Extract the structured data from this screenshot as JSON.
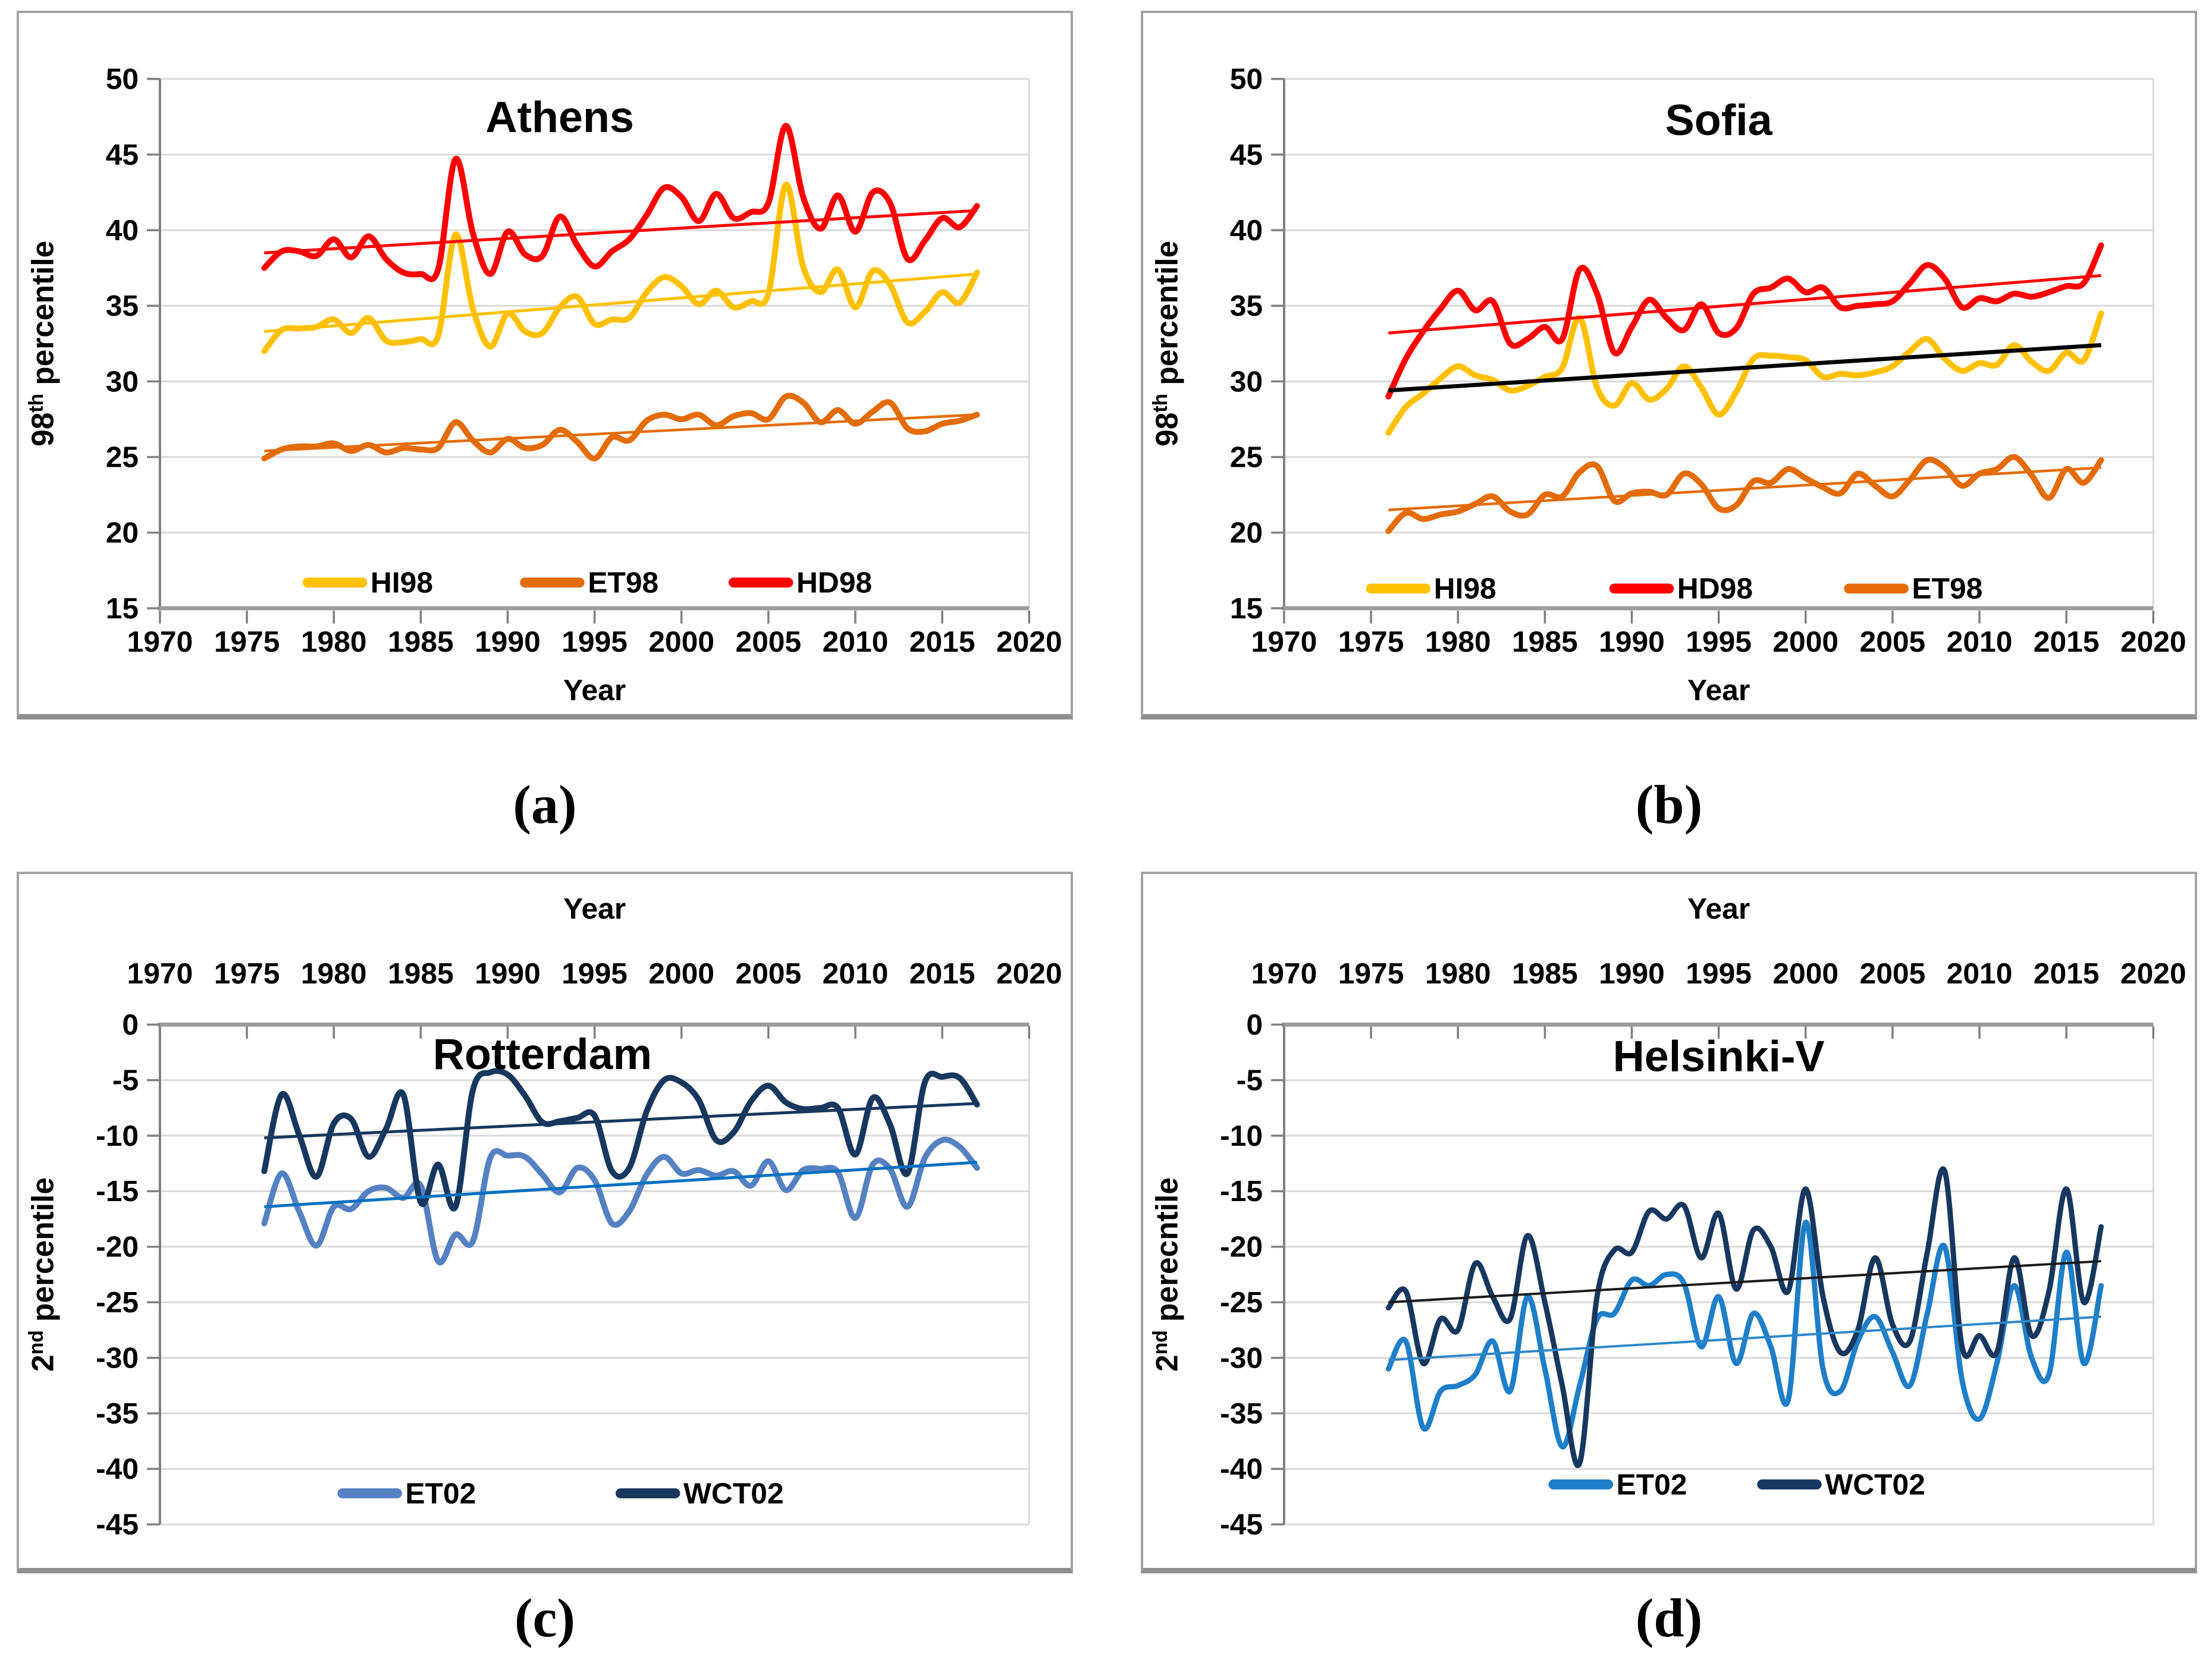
{
  "page": {
    "background": "#FFFFFF",
    "captions": [
      "(a)",
      "(b)",
      "(c)",
      "(d)"
    ]
  },
  "styles": {
    "grid_color": "#D9D9D9",
    "axis_color": "#9B9B9B",
    "y_axis_color": "#808080",
    "tick_color": "#7F7F7F",
    "label_color": "#000000"
  },
  "chart_data": [
    {
      "id": "athens",
      "type": "line",
      "title": "Athens",
      "title_color": "#C00000",
      "title_frac": 0.46,
      "title_value": 46.5,
      "x_axis_side": "bottom",
      "xlabel": "Year",
      "ylabel": {
        "base": "98",
        "sup": "th",
        "rest": " percentile"
      },
      "xlim": [
        1970,
        2020
      ],
      "xstep": 5,
      "ylim": [
        15,
        50
      ],
      "ystep": 5,
      "x_ticks": [
        1970,
        1975,
        1980,
        1985,
        1990,
        1995,
        2000,
        2005,
        2010,
        2015,
        2020
      ],
      "y_ticks": [
        15,
        20,
        25,
        30,
        35,
        40,
        45,
        50
      ],
      "x_start": 1976,
      "series": [
        {
          "name": "ET98",
          "color": "#E36C09",
          "width": 10,
          "values": [
            24.9,
            25.5,
            25.7,
            25.7,
            25.9,
            25.4,
            25.8,
            25.3,
            25.6,
            25.5,
            25.6,
            27.3,
            26.1,
            25.3,
            26.2,
            25.6,
            25.8,
            26.8,
            26.0,
            24.9,
            26.3,
            26.1,
            27.4,
            27.8,
            27.5,
            27.8,
            27.1,
            27.7,
            27.9,
            27.5,
            29.0,
            28.6,
            27.3,
            28.1,
            27.2,
            28.0,
            28.6,
            26.9,
            26.7,
            27.2,
            27.4,
            27.8
          ],
          "trend": {
            "start": 25.4,
            "end": 27.8,
            "color": "#E36C09",
            "width": 4.5
          }
        },
        {
          "name": "HI98",
          "color": "#FFC000",
          "width": 10,
          "values": [
            32.0,
            33.4,
            33.5,
            33.6,
            34.1,
            33.2,
            34.2,
            32.7,
            32.6,
            32.8,
            33.0,
            39.7,
            34.8,
            32.3,
            34.5,
            33.3,
            33.2,
            34.9,
            35.6,
            33.8,
            34.1,
            34.2,
            35.9,
            36.9,
            36.3,
            35.1,
            36.0,
            34.9,
            35.3,
            35.8,
            43.0,
            37.6,
            35.9,
            37.4,
            34.9,
            37.3,
            36.4,
            33.9,
            34.6,
            35.9,
            35.2,
            37.2
          ],
          "trend": {
            "start": 33.3,
            "end": 37.1,
            "color": "#FFC000",
            "width": 5
          }
        },
        {
          "name": "HD98",
          "color": "#FF0000",
          "width": 10,
          "values": [
            37.5,
            38.6,
            38.6,
            38.3,
            39.4,
            38.2,
            39.6,
            38.1,
            37.2,
            37.1,
            37.4,
            44.7,
            39.8,
            37.1,
            39.9,
            38.4,
            38.3,
            40.9,
            39.0,
            37.6,
            38.6,
            39.4,
            41.0,
            42.8,
            42.2,
            40.6,
            42.4,
            40.8,
            41.2,
            41.8,
            46.9,
            42.2,
            40.1,
            42.3,
            39.9,
            42.5,
            41.8,
            38.1,
            39.3,
            40.8,
            40.2,
            41.6
          ],
          "trend": {
            "start": 38.5,
            "end": 41.3,
            "color": "#FF0000",
            "width": 5
          }
        }
      ],
      "legend": {
        "items": [
          {
            "label": "HI98",
            "color": "#FFC000"
          },
          {
            "label": "ET98",
            "color": "#E36C09"
          },
          {
            "label": "HD98",
            "color": "#FF0000"
          }
        ],
        "fracs": [
          0.17,
          0.42,
          0.66
        ],
        "y_value": 16.7
      }
    },
    {
      "id": "sofia",
      "type": "line",
      "title": "Sofia",
      "title_color": "#C00000",
      "title_frac": 0.5,
      "title_value": 46.3,
      "x_axis_side": "bottom",
      "xlabel": "Year",
      "ylabel": {
        "base": "98",
        "sup": "th",
        "rest": " percentile"
      },
      "xlim": [
        1970,
        2020
      ],
      "xstep": 5,
      "ylim": [
        15,
        50
      ],
      "ystep": 5,
      "x_ticks": [
        1970,
        1975,
        1980,
        1985,
        1990,
        1995,
        2000,
        2005,
        2010,
        2015,
        2020
      ],
      "y_ticks": [
        15,
        20,
        25,
        30,
        35,
        40,
        45,
        50
      ],
      "x_start": 1976,
      "series": [
        {
          "name": "ET98",
          "color": "#E36C09",
          "width": 10,
          "values": [
            20.1,
            21.3,
            20.9,
            21.2,
            21.4,
            21.9,
            22.4,
            21.4,
            21.2,
            22.5,
            22.4,
            24.0,
            24.4,
            22.1,
            22.6,
            22.7,
            22.5,
            23.9,
            23.2,
            21.6,
            21.8,
            23.4,
            23.3,
            24.2,
            23.6,
            23.0,
            22.6,
            23.9,
            23.1,
            22.4,
            23.5,
            24.8,
            24.3,
            23.1,
            23.9,
            24.2,
            25.0,
            23.8,
            22.3,
            24.2,
            23.3,
            24.8
          ],
          "trend": {
            "start": 21.5,
            "end": 24.3,
            "color": "#E36C09",
            "width": 4.5
          }
        },
        {
          "name": "HI98",
          "color": "#FFC000",
          "width": 10,
          "values": [
            26.6,
            28.3,
            29.2,
            30.2,
            31.0,
            30.4,
            30.1,
            29.4,
            29.7,
            30.3,
            30.9,
            34.2,
            29.6,
            28.4,
            29.9,
            28.8,
            29.5,
            31.0,
            29.6,
            27.8,
            29.3,
            31.5,
            31.7,
            31.6,
            31.4,
            30.3,
            30.5,
            30.4,
            30.6,
            31.0,
            32.0,
            32.8,
            31.5,
            30.7,
            31.2,
            31.1,
            32.4,
            31.3,
            30.7,
            31.9,
            31.4,
            34.5
          ],
          "trend": {
            "start": 29.4,
            "end": 32.4,
            "color": "#000000",
            "width": 7
          }
        },
        {
          "name": "HD98",
          "color": "#FF0000",
          "width": 10,
          "values": [
            29.0,
            31.5,
            33.3,
            34.8,
            36.0,
            34.7,
            35.3,
            32.5,
            32.8,
            33.6,
            32.8,
            37.4,
            35.8,
            31.9,
            33.6,
            35.4,
            34.2,
            33.4,
            35.1,
            33.2,
            33.5,
            35.8,
            36.2,
            36.8,
            35.9,
            36.2,
            34.9,
            35.0,
            35.1,
            35.3,
            36.5,
            37.7,
            36.8,
            34.9,
            35.5,
            35.3,
            35.8,
            35.6,
            35.9,
            36.3,
            36.5,
            39.0
          ],
          "trend": {
            "start": 33.2,
            "end": 37.0,
            "color": "#FF0000",
            "width": 5
          }
        }
      ],
      "legend": {
        "items": [
          {
            "label": "HI98",
            "color": "#FFC000"
          },
          {
            "label": "HD98",
            "color": "#FF0000"
          },
          {
            "label": "ET98",
            "color": "#E36C09"
          }
        ],
        "fracs": [
          0.1,
          0.38,
          0.65
        ],
        "y_value": 16.3
      }
    },
    {
      "id": "rotterdam",
      "type": "line",
      "title": "Rotterdam",
      "title_color": "#1F3864",
      "title_frac": 0.44,
      "title_value": -4.0,
      "x_axis_side": "top",
      "xlabel": "Year",
      "ylabel": {
        "base": "2",
        "sup": "nd",
        "rest": " percentile"
      },
      "xlim": [
        1970,
        2020
      ],
      "xstep": 5,
      "ylim": [
        -45,
        0
      ],
      "ystep": 5,
      "x_ticks": [
        1970,
        1975,
        1980,
        1985,
        1990,
        1995,
        2000,
        2005,
        2010,
        2015,
        2020
      ],
      "y_ticks": [
        0,
        -5,
        -10,
        -15,
        -20,
        -25,
        -30,
        -35,
        -40,
        -45
      ],
      "x_start": 1976,
      "series": [
        {
          "name": "ET02",
          "color": "#5581C2",
          "width": 10,
          "values": [
            -17.9,
            -13.4,
            -16.8,
            -19.9,
            -16.4,
            -16.6,
            -15.0,
            -14.7,
            -15.6,
            -14.5,
            -21.3,
            -18.9,
            -19.5,
            -12.0,
            -11.8,
            -11.9,
            -13.5,
            -15.1,
            -12.9,
            -14.0,
            -17.9,
            -16.8,
            -13.5,
            -11.9,
            -13.4,
            -13.1,
            -13.6,
            -13.2,
            -14.5,
            -12.3,
            -14.9,
            -13.1,
            -13.0,
            -13.3,
            -17.4,
            -12.6,
            -13.0,
            -16.4,
            -12.0,
            -10.4,
            -11.0,
            -12.9
          ],
          "trend": {
            "start": -16.4,
            "end": -12.4,
            "color": "#0070C0",
            "width": 5
          }
        },
        {
          "name": "WCT02",
          "color": "#17375E",
          "width": 10,
          "values": [
            -13.2,
            -6.3,
            -9.9,
            -13.7,
            -8.9,
            -8.5,
            -11.9,
            -9.4,
            -6.3,
            -16.0,
            -12.6,
            -16.4,
            -5.9,
            -4.3,
            -4.5,
            -6.4,
            -8.8,
            -8.7,
            -8.4,
            -8.2,
            -13.2,
            -12.9,
            -7.8,
            -5.0,
            -5.2,
            -6.8,
            -10.4,
            -9.7,
            -6.9,
            -5.5,
            -7.0,
            -7.6,
            -7.5,
            -7.5,
            -11.7,
            -6.6,
            -9.0,
            -13.4,
            -5.2,
            -4.7,
            -4.8,
            -7.2
          ],
          "trend": {
            "start": -10.2,
            "end": -7.1,
            "color": "#17375E",
            "width": 5
          }
        }
      ],
      "legend": {
        "items": [
          {
            "label": "ET02",
            "color": "#5581C2"
          },
          {
            "label": "WCT02",
            "color": "#17375E"
          }
        ],
        "fracs": [
          0.21,
          0.53
        ],
        "y_value": -42.2
      }
    },
    {
      "id": "helsinki",
      "type": "line",
      "title": "Helsinki-V",
      "title_color": "#1F3864",
      "title_frac": 0.5,
      "title_value": -4.2,
      "x_axis_side": "top",
      "xlabel": "Year",
      "ylabel": {
        "base": "2",
        "sup": "nd",
        "rest": " perecntile"
      },
      "xlim": [
        1970,
        2020
      ],
      "xstep": 5,
      "ylim": [
        -45,
        0
      ],
      "ystep": 5,
      "x_ticks": [
        1970,
        1975,
        1980,
        1985,
        1990,
        1995,
        2000,
        2005,
        2010,
        2015,
        2020
      ],
      "y_ticks": [
        0,
        -5,
        -10,
        -15,
        -20,
        -25,
        -30,
        -35,
        -40,
        -45
      ],
      "x_start": 1976,
      "series": [
        {
          "name": "ET02",
          "color": "#1E7EC8",
          "width": 9,
          "values": [
            -31.0,
            -28.5,
            -36.3,
            -33.0,
            -32.5,
            -31.5,
            -28.5,
            -33.0,
            -24.5,
            -31.0,
            -38.0,
            -32.5,
            -26.5,
            -26.0,
            -23.0,
            -23.5,
            -22.5,
            -23.3,
            -29.0,
            -24.5,
            -30.5,
            -26.0,
            -29.0,
            -33.8,
            -17.8,
            -31.0,
            -33.0,
            -28.5,
            -26.3,
            -29.5,
            -32.5,
            -26.0,
            -20.0,
            -32.0,
            -35.5,
            -30.5,
            -23.5,
            -30.0,
            -31.5,
            -20.5,
            -30.5,
            -23.5
          ],
          "trend": {
            "start": -30.2,
            "end": -26.3,
            "color": "#2E86C8",
            "width": 4
          }
        },
        {
          "name": "WCT02",
          "color": "#17375E",
          "width": 9,
          "values": [
            -25.5,
            -24.0,
            -30.5,
            -26.5,
            -27.5,
            -21.5,
            -24.5,
            -26.5,
            -19.0,
            -25.0,
            -32.5,
            -39.5,
            -24.5,
            -20.3,
            -20.5,
            -16.8,
            -17.5,
            -16.3,
            -21.0,
            -17.0,
            -23.8,
            -18.5,
            -20.0,
            -24.0,
            -14.8,
            -24.5,
            -29.5,
            -27.5,
            -21.0,
            -27.0,
            -28.5,
            -20.5,
            -13.2,
            -29.0,
            -28.0,
            -29.5,
            -21.0,
            -28.0,
            -24.0,
            -14.8,
            -25.0,
            -18.2
          ],
          "trend": {
            "start": -25.0,
            "end": -21.3,
            "color": "#1A1A1A",
            "width": 4
          }
        }
      ],
      "legend": {
        "items": [
          {
            "label": "ET02",
            "color": "#1E7EC8"
          },
          {
            "label": "WCT02",
            "color": "#17375E"
          }
        ],
        "fracs": [
          0.31,
          0.55
        ],
        "y_value": -41.4
      }
    }
  ]
}
